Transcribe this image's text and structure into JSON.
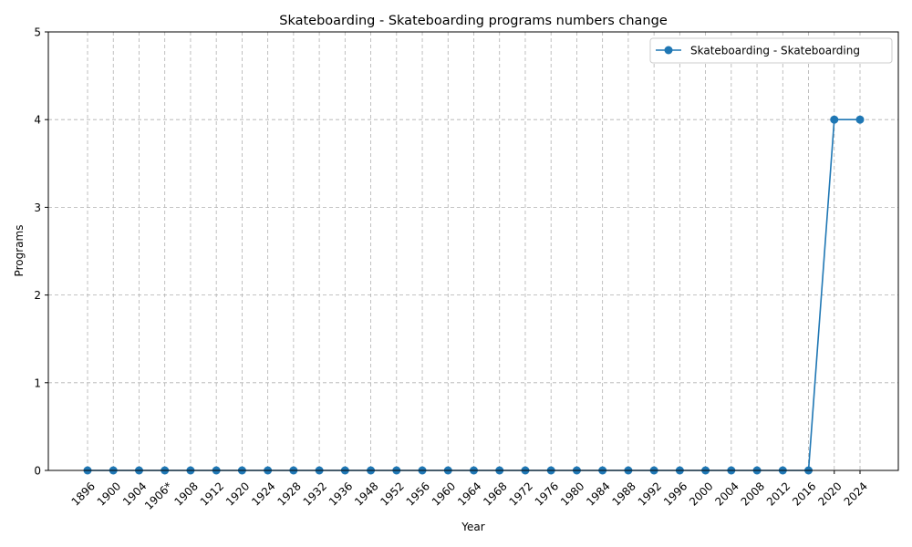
{
  "chart_data": {
    "type": "line",
    "title": "Skateboarding - Skateboarding programs numbers change",
    "xlabel": "Year",
    "ylabel": "Programs",
    "categories": [
      "1896",
      "1900",
      "1904",
      "1906*",
      "1908",
      "1912",
      "1920",
      "1924",
      "1928",
      "1932",
      "1936",
      "1948",
      "1952",
      "1956",
      "1960",
      "1964",
      "1968",
      "1972",
      "1976",
      "1980",
      "1984",
      "1988",
      "1992",
      "1996",
      "2000",
      "2004",
      "2008",
      "2012",
      "2016",
      "2020",
      "2024"
    ],
    "series": [
      {
        "name": "Skateboarding - Skateboarding",
        "color": "#1f77b4",
        "marker": "circle",
        "values": [
          0,
          0,
          0,
          0,
          0,
          0,
          0,
          0,
          0,
          0,
          0,
          0,
          0,
          0,
          0,
          0,
          0,
          0,
          0,
          0,
          0,
          0,
          0,
          0,
          0,
          0,
          0,
          0,
          0,
          4,
          4
        ]
      }
    ],
    "ylim": [
      0,
      5
    ],
    "yticks": [
      0,
      1,
      2,
      3,
      4,
      5
    ],
    "grid": true,
    "legend_position": "top-right"
  }
}
